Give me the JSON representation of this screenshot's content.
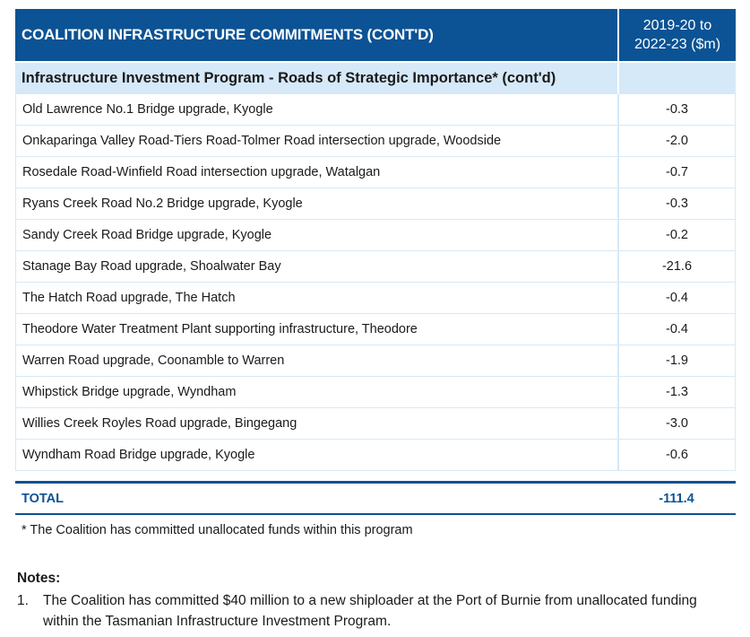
{
  "table": {
    "title": "COALITION INFRASTRUCTURE COMMITMENTS (CONT'D)",
    "period_line1": "2019-20 to",
    "period_line2": "2022-23 ($m)",
    "section_heading": "Infrastructure Investment Program - Roads of Strategic Importance* (cont'd)",
    "rows": [
      {
        "name": "Old Lawrence No.1 Bridge upgrade, Kyogle",
        "value": "-0.3"
      },
      {
        "name": "Onkaparinga Valley Road-Tiers Road-Tolmer Road intersection upgrade, Woodside",
        "value": "-2.0"
      },
      {
        "name": "Rosedale Road-Winfield Road intersection upgrade, Watalgan",
        "value": "-0.7"
      },
      {
        "name": "Ryans Creek Road No.2 Bridge upgrade, Kyogle",
        "value": "-0.3"
      },
      {
        "name": "Sandy Creek Road Bridge upgrade, Kyogle",
        "value": "-0.2"
      },
      {
        "name": "Stanage Bay Road upgrade, Shoalwater Bay",
        "value": "-21.6"
      },
      {
        "name": "The Hatch Road upgrade, The Hatch",
        "value": "-0.4"
      },
      {
        "name": "Theodore Water Treatment Plant supporting infrastructure, Theodore",
        "value": "-0.4"
      },
      {
        "name": "Warren Road upgrade, Coonamble to Warren",
        "value": "-1.9"
      },
      {
        "name": "Whipstick Bridge upgrade, Wyndham",
        "value": "-1.3"
      },
      {
        "name": "Willies Creek Royles Road upgrade, Bingegang",
        "value": "-3.0"
      },
      {
        "name": "Wyndham Road Bridge upgrade, Kyogle",
        "value": "-0.6"
      }
    ],
    "total_label": "TOTAL",
    "total_value": "-111.4"
  },
  "footnote": "* The Coalition has committed unallocated funds within this program",
  "notes": {
    "title": "Notes:",
    "items": [
      {
        "number": "1.",
        "text": "The Coalition has committed $40 million to a new shiploader at the Port of Burnie from unallocated funding within the Tasmanian Infrastructure Investment Program."
      }
    ]
  },
  "colors": {
    "header_blue": "#0b5394",
    "subheader_light_blue": "#d6e9f8",
    "border_light_blue": "#d6e9f8"
  }
}
